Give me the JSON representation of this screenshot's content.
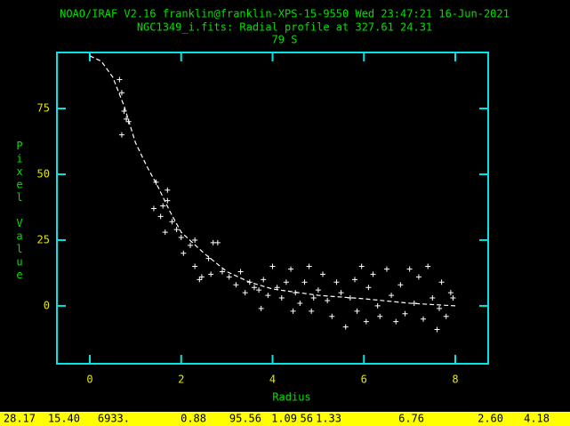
{
  "chart_data": {
    "type": "scatter",
    "title": "NOAO/IRAF V2.16 franklin@franklin-XPS-15-9550 Wed 23:47:21 16-Jun-2021",
    "subtitle": "NGC1349_i.fits: Radial profile at 327.61 24.31",
    "annotation": "79 S",
    "x_label": "Radius",
    "y_label": "Pixel Value",
    "xlim": [
      -0.72,
      8.72
    ],
    "ylim": [
      -22,
      96.3
    ],
    "xticks": [
      0,
      2,
      4,
      6,
      8
    ],
    "yticks": [
      0,
      25,
      50,
      75
    ],
    "frame_color": "#00e5e5",
    "tick_label_color": "#e5e500",
    "text_color": "#00e000",
    "series": [
      {
        "name": "data",
        "color": "#ffffff",
        "x": [
          0.65,
          0.7,
          0.75,
          0.7,
          0.85,
          0.8,
          1.45,
          1.4,
          1.55,
          1.6,
          1.65,
          1.7,
          1.7,
          1.8,
          1.9,
          2.0,
          2.05,
          2.2,
          2.3,
          2.3,
          2.4,
          2.45,
          2.6,
          2.7,
          2.8,
          2.65,
          2.9,
          3.05,
          3.2,
          3.3,
          3.4,
          3.5,
          3.6,
          3.7,
          3.75,
          3.8,
          3.9,
          4.0,
          4.1,
          4.2,
          4.3,
          4.4,
          4.5,
          4.45,
          4.6,
          4.7,
          4.8,
          4.85,
          4.9,
          5.0,
          5.1,
          5.2,
          5.3,
          5.4,
          5.5,
          5.6,
          5.7,
          5.8,
          5.85,
          5.95,
          6.05,
          6.1,
          6.2,
          6.3,
          6.35,
          6.5,
          6.6,
          6.7,
          6.8,
          6.9,
          7.0,
          7.1,
          7.2,
          7.3,
          7.4,
          7.5,
          7.6,
          7.65,
          7.7,
          7.8,
          7.9,
          7.95
        ],
        "values": [
          86,
          81,
          74,
          65,
          70,
          71,
          47,
          37,
          34,
          38,
          28,
          44,
          40,
          32,
          29,
          26,
          20,
          23,
          25,
          15,
          10,
          11,
          18,
          24,
          24,
          12,
          13,
          11,
          8,
          13,
          5,
          9,
          7,
          6,
          -1,
          10,
          4,
          15,
          7,
          3,
          9,
          14,
          5,
          -2,
          1,
          9,
          15,
          -2,
          3,
          6,
          12,
          2,
          -4,
          9,
          5,
          -8,
          3,
          10,
          -2,
          15,
          -6,
          7,
          12,
          0,
          -4,
          14,
          4,
          -6,
          8,
          -3,
          14,
          1,
          11,
          -5,
          15,
          3,
          -9,
          -1,
          9,
          -4,
          5,
          3
        ]
      },
      {
        "name": "fit",
        "color": "#ffffff",
        "x": [
          0,
          0.25,
          0.5,
          0.75,
          1,
          1.25,
          1.5,
          1.75,
          2,
          2.5,
          3,
          3.5,
          4,
          5,
          6,
          7,
          8
        ],
        "values": [
          95,
          93,
          87,
          76,
          62,
          53,
          45,
          36,
          28,
          20,
          13,
          9,
          6.4,
          4,
          2.7,
          1,
          0
        ]
      }
    ]
  },
  "status_bar": [
    "28.17",
    "15.40",
    "6933.",
    "0.88",
    "95.56",
    "1.09",
    "56",
    "1.33",
    "6.76",
    "2.60",
    "4.18"
  ]
}
